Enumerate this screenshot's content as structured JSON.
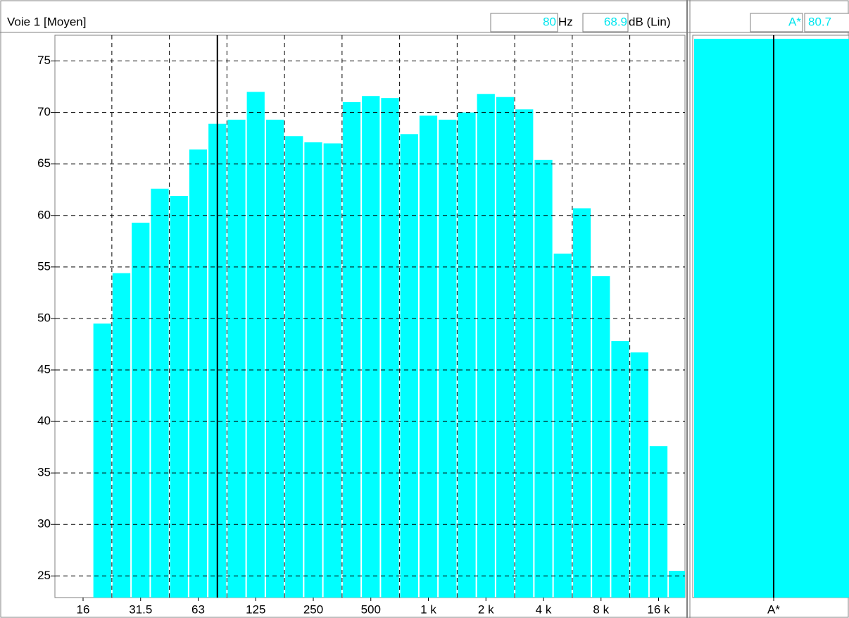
{
  "header": {
    "channel": "Voie 1 [Moyen]",
    "frequency": "80",
    "frequency_unit": "Hz",
    "level": "68.9",
    "level_unit": "dB (Lin)",
    "summary_label": "A*",
    "summary_value": "80.7"
  },
  "chart_data": {
    "type": "bar",
    "color": "#00ffff",
    "categories": [
      "16",
      null,
      null,
      "31.5",
      null,
      null,
      "63",
      null,
      null,
      "125",
      null,
      null,
      "250",
      null,
      null,
      "500",
      null,
      null,
      "1 k",
      null,
      null,
      "2 k",
      null,
      null,
      "4 k",
      null,
      null,
      "8 k",
      null,
      null,
      "16 k",
      null
    ],
    "values": [
      null,
      49.5,
      54.4,
      59.3,
      62.6,
      61.9,
      66.4,
      68.9,
      69.3,
      72.0,
      69.3,
      67.7,
      67.1,
      67.0,
      71.0,
      71.6,
      71.4,
      67.9,
      69.7,
      69.3,
      70.0,
      71.8,
      71.5,
      70.3,
      65.4,
      56.3,
      60.7,
      54.1,
      47.8,
      46.7,
      37.6,
      25.5
    ],
    "ylim": [
      22.9,
      77.5
    ],
    "yticks": [
      25,
      30,
      35,
      40,
      45,
      50,
      55,
      60,
      65,
      70,
      75
    ],
    "grid": true,
    "cursor_index": 7,
    "summary": {
      "category": "A*",
      "value": 80.7
    }
  }
}
